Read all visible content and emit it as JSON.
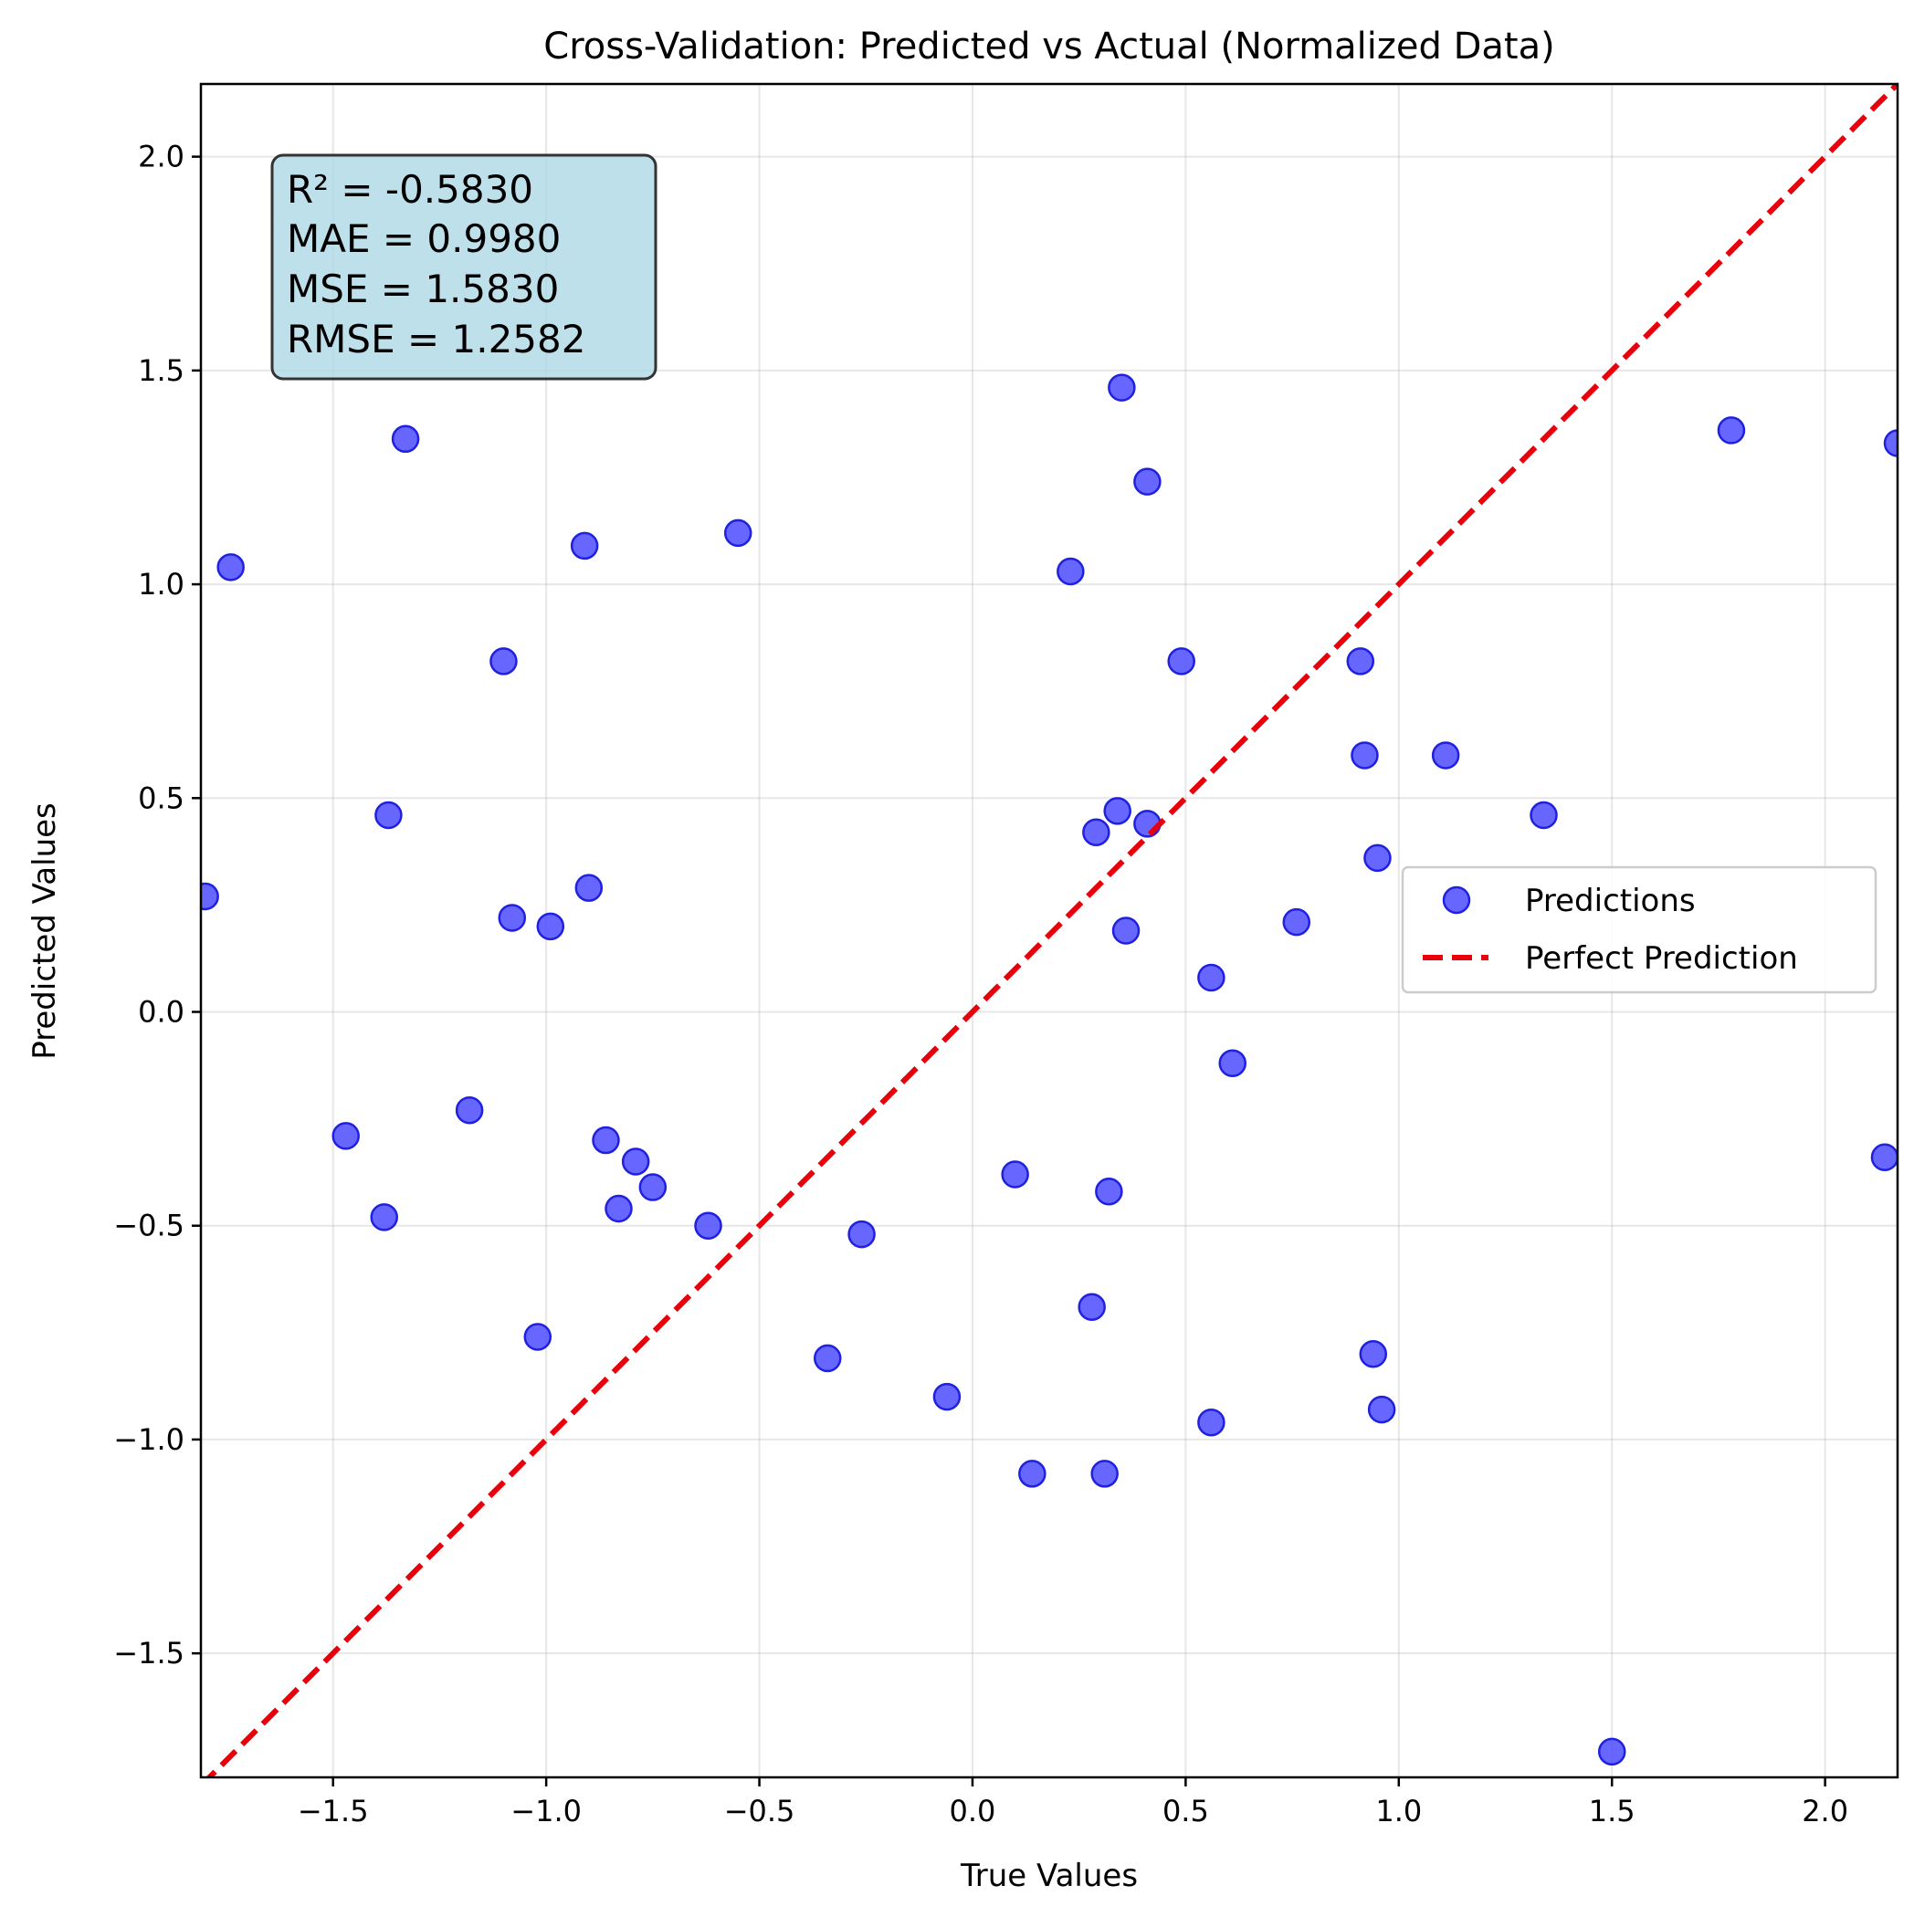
{
  "chart_data": {
    "type": "scatter",
    "title": "Cross-Validation: Predicted vs Actual (Normalized Data)",
    "xlabel": "True Values",
    "ylabel": "Predicted Values",
    "xlim": [
      -1.81,
      2.17
    ],
    "ylim": [
      -1.79,
      2.17
    ],
    "grid": true,
    "legend_position": "center-right",
    "x_ticks": [
      -1.5,
      -1.0,
      -0.5,
      0.0,
      0.5,
      1.0,
      1.5,
      2.0
    ],
    "x_tick_labels": [
      "−1.5",
      "−1.0",
      "−0.5",
      "0.0",
      "0.5",
      "1.0",
      "1.5",
      "2.0"
    ],
    "y_ticks": [
      -1.5,
      -1.0,
      -0.5,
      0.0,
      0.5,
      1.0,
      1.5,
      2.0
    ],
    "y_tick_labels": [
      "−1.5",
      "−1.0",
      "−0.5",
      "0.0",
      "0.5",
      "1.0",
      "1.5",
      "2.0"
    ],
    "stats_lines": [
      "R² = -0.5830",
      "MAE = 0.9980",
      "MSE = 1.5830",
      "RMSE = 1.2582"
    ],
    "series": [
      {
        "name": "Predictions",
        "kind": "scatter",
        "color": "#4c4cff",
        "edge_color": "#2020e0",
        "x": [
          -1.8,
          -1.74,
          -1.33,
          -1.37,
          -1.47,
          -1.38,
          -1.18,
          -1.1,
          -1.08,
          -1.02,
          -0.99,
          -0.91,
          -0.9,
          -0.86,
          -0.83,
          -0.79,
          -0.75,
          -0.62,
          -0.55,
          -0.34,
          -0.26,
          -0.06,
          0.1,
          0.14,
          0.23,
          0.28,
          0.29,
          0.31,
          0.32,
          0.34,
          0.35,
          0.36,
          0.41,
          0.41,
          0.49,
          0.56,
          0.56,
          0.61,
          0.76,
          0.91,
          0.92,
          0.94,
          0.95,
          0.96,
          1.11,
          1.34,
          1.5,
          1.78,
          2.14,
          2.17
        ],
        "y": [
          0.27,
          1.04,
          1.34,
          0.46,
          -0.29,
          -0.48,
          -0.23,
          0.82,
          0.22,
          -0.76,
          0.2,
          1.09,
          0.29,
          -0.3,
          -0.46,
          -0.35,
          -0.41,
          -0.5,
          1.12,
          -0.81,
          -0.52,
          -0.9,
          -0.38,
          -1.08,
          1.03,
          -0.69,
          0.42,
          -1.08,
          -0.42,
          0.47,
          1.46,
          0.19,
          1.24,
          0.44,
          0.82,
          0.08,
          -0.96,
          -0.12,
          0.21,
          0.82,
          0.6,
          -0.8,
          0.36,
          -0.93,
          0.6,
          0.46,
          -1.73,
          1.36,
          -0.34,
          1.33
        ]
      },
      {
        "name": "Perfect Prediction",
        "kind": "line",
        "color": "#e8000b",
        "style": "dashed",
        "x": [
          -1.81,
          2.17
        ],
        "y": [
          -1.81,
          2.17
        ]
      }
    ]
  }
}
